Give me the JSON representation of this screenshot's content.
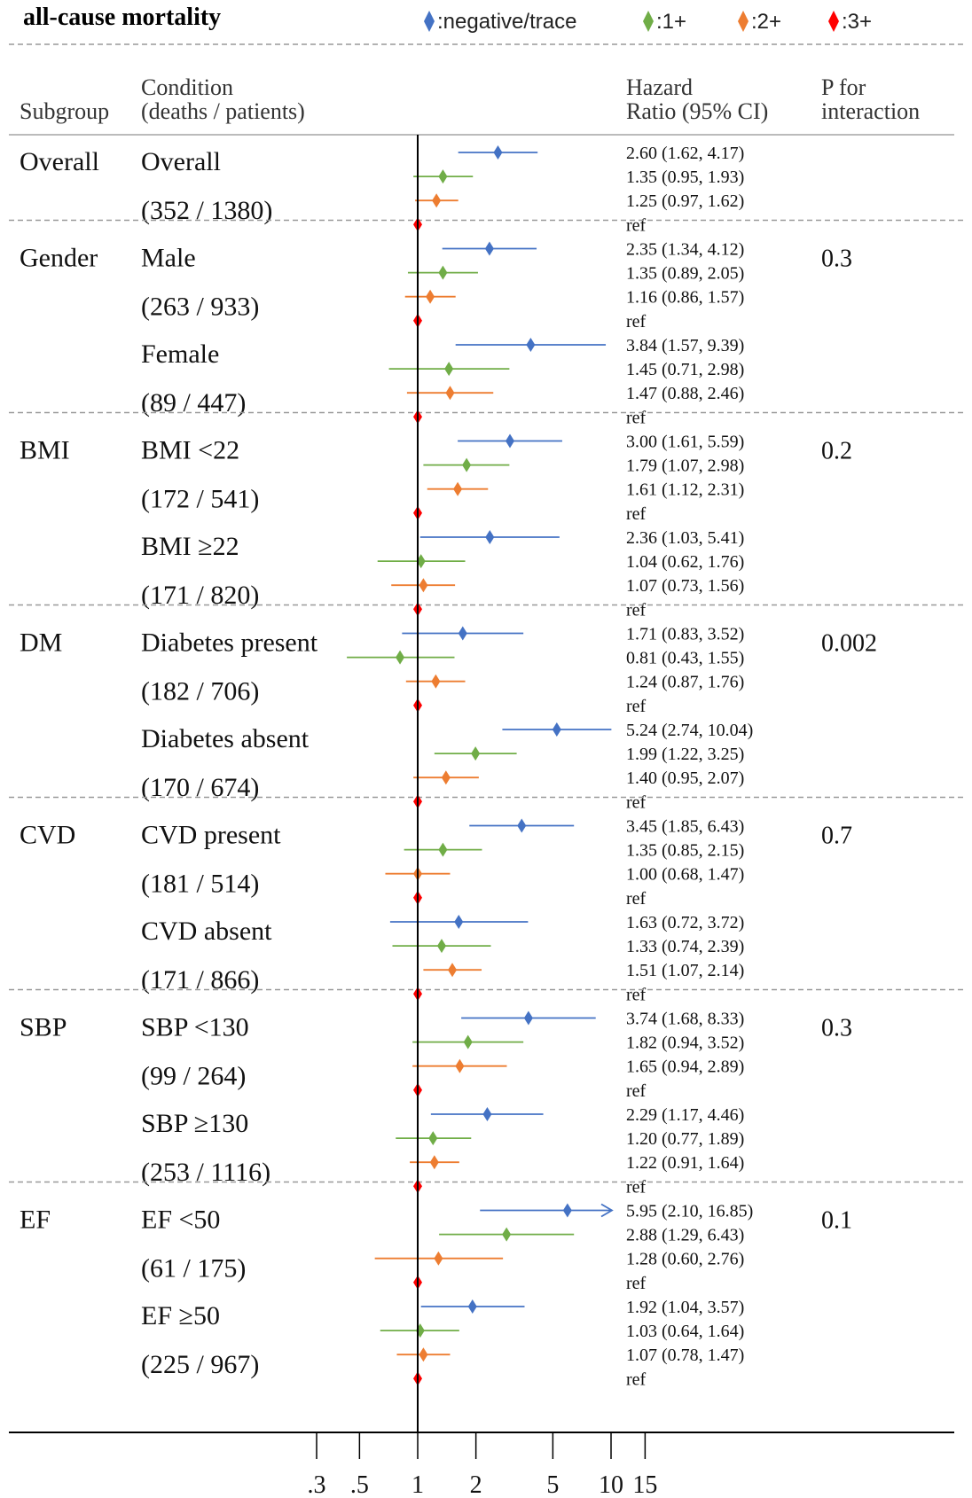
{
  "chart_data": {
    "type": "forest",
    "title": "all-cause mortality",
    "legend": {
      "placement": "top-right",
      "items": [
        {
          "label": ":negative/trace",
          "color": "#4472C4"
        },
        {
          "label": ":1+",
          "color": "#70AD47"
        },
        {
          "label": ":2+",
          "color": "#ED7D31"
        },
        {
          "label": ":3+",
          "color": "#FF0000"
        }
      ]
    },
    "columns": {
      "subgroup": "Subgroup",
      "condition_l1": "Condition",
      "condition_l2": "(deaths / patients)",
      "hr_l1": "Hazard",
      "hr_l2": "Ratio (95% CI)",
      "p_l1": "P for",
      "p_l2": "interaction"
    },
    "x_axis": {
      "scale": "log",
      "ticks": [
        0.3,
        0.5,
        1,
        2,
        5,
        10,
        15
      ],
      "tick_labels": [
        ".3",
        ".5",
        "1",
        "2",
        "5",
        "10",
        "15"
      ],
      "reference": 1
    },
    "groups": [
      {
        "subgroup": "Overall",
        "p": "",
        "conditions": [
          {
            "label": "Overall",
            "counts": "(352 / 1380)",
            "estimates": [
              {
                "hr": 2.6,
                "lo": 1.62,
                "hi": 4.17,
                "text": "2.60 (1.62, 4.17)"
              },
              {
                "hr": 1.35,
                "lo": 0.95,
                "hi": 1.93,
                "text": "1.35 (0.95, 1.93)"
              },
              {
                "hr": 1.25,
                "lo": 0.97,
                "hi": 1.62,
                "text": "1.25 (0.97, 1.62)"
              },
              {
                "hr": 1,
                "lo": null,
                "hi": null,
                "text": "ref"
              }
            ]
          }
        ]
      },
      {
        "subgroup": "Gender",
        "p": "0.3",
        "conditions": [
          {
            "label": "Male",
            "counts": "(263 / 933)",
            "estimates": [
              {
                "hr": 2.35,
                "lo": 1.34,
                "hi": 4.12,
                "text": "2.35 (1.34, 4.12)"
              },
              {
                "hr": 1.35,
                "lo": 0.89,
                "hi": 2.05,
                "text": "1.35 (0.89, 2.05)"
              },
              {
                "hr": 1.16,
                "lo": 0.86,
                "hi": 1.57,
                "text": "1.16 (0.86, 1.57)"
              },
              {
                "hr": 1,
                "lo": null,
                "hi": null,
                "text": "ref"
              }
            ]
          },
          {
            "label": "Female",
            "counts": "(89 / 447)",
            "estimates": [
              {
                "hr": 3.84,
                "lo": 1.57,
                "hi": 9.39,
                "text": "3.84 (1.57, 9.39)"
              },
              {
                "hr": 1.45,
                "lo": 0.71,
                "hi": 2.98,
                "text": "1.45 (0.71, 2.98)"
              },
              {
                "hr": 1.47,
                "lo": 0.88,
                "hi": 2.46,
                "text": "1.47 (0.88, 2.46)"
              },
              {
                "hr": 1,
                "lo": null,
                "hi": null,
                "text": "ref"
              }
            ]
          }
        ]
      },
      {
        "subgroup": "BMI",
        "p": "0.2",
        "conditions": [
          {
            "label": "BMI <22",
            "counts": "(172 / 541)",
            "estimates": [
              {
                "hr": 3.0,
                "lo": 1.61,
                "hi": 5.59,
                "text": "3.00 (1.61, 5.59)"
              },
              {
                "hr": 1.79,
                "lo": 1.07,
                "hi": 2.98,
                "text": "1.79 (1.07, 2.98)"
              },
              {
                "hr": 1.61,
                "lo": 1.12,
                "hi": 2.31,
                "text": "1.61 (1.12, 2.31)"
              },
              {
                "hr": 1,
                "lo": null,
                "hi": null,
                "text": "ref"
              }
            ]
          },
          {
            "label": "BMI ≥22",
            "counts": "(171 / 820)",
            "estimates": [
              {
                "hr": 2.36,
                "lo": 1.03,
                "hi": 5.41,
                "text": "2.36 (1.03, 5.41)"
              },
              {
                "hr": 1.04,
                "lo": 0.62,
                "hi": 1.76,
                "text": "1.04 (0.62, 1.76)"
              },
              {
                "hr": 1.07,
                "lo": 0.73,
                "hi": 1.56,
                "text": "1.07 (0.73, 1.56)"
              },
              {
                "hr": 1,
                "lo": null,
                "hi": null,
                "text": "ref"
              }
            ]
          }
        ]
      },
      {
        "subgroup": "DM",
        "p": "0.002",
        "conditions": [
          {
            "label": "Diabetes present",
            "counts": "(182 / 706)",
            "estimates": [
              {
                "hr": 1.71,
                "lo": 0.83,
                "hi": 3.52,
                "text": "1.71 (0.83, 3.52)"
              },
              {
                "hr": 0.81,
                "lo": 0.43,
                "hi": 1.55,
                "text": "0.81 (0.43, 1.55)"
              },
              {
                "hr": 1.24,
                "lo": 0.87,
                "hi": 1.76,
                "text": "1.24 (0.87, 1.76)"
              },
              {
                "hr": 1,
                "lo": null,
                "hi": null,
                "text": "ref"
              }
            ]
          },
          {
            "label": "Diabetes absent",
            "counts": "(170 / 674)",
            "estimates": [
              {
                "hr": 5.24,
                "lo": 2.74,
                "hi": 10.04,
                "text": "5.24 (2.74, 10.04)"
              },
              {
                "hr": 1.99,
                "lo": 1.22,
                "hi": 3.25,
                "text": "1.99 (1.22, 3.25)"
              },
              {
                "hr": 1.4,
                "lo": 0.95,
                "hi": 2.07,
                "text": "1.40 (0.95, 2.07)"
              },
              {
                "hr": 1,
                "lo": null,
                "hi": null,
                "text": "ref"
              }
            ]
          }
        ]
      },
      {
        "subgroup": "CVD",
        "p": "0.7",
        "conditions": [
          {
            "label": "CVD present",
            "counts": "(181 / 514)",
            "estimates": [
              {
                "hr": 3.45,
                "lo": 1.85,
                "hi": 6.43,
                "text": "3.45 (1.85, 6.43)"
              },
              {
                "hr": 1.35,
                "lo": 0.85,
                "hi": 2.15,
                "text": "1.35 (0.85, 2.15)"
              },
              {
                "hr": 1.0,
                "lo": 0.68,
                "hi": 1.47,
                "text": "1.00 (0.68, 1.47)"
              },
              {
                "hr": 1,
                "lo": null,
                "hi": null,
                "text": "ref"
              }
            ]
          },
          {
            "label": "CVD absent",
            "counts": "(171 / 866)",
            "estimates": [
              {
                "hr": 1.63,
                "lo": 0.72,
                "hi": 3.72,
                "text": "1.63 (0.72, 3.72)"
              },
              {
                "hr": 1.33,
                "lo": 0.74,
                "hi": 2.39,
                "text": "1.33 (0.74, 2.39)"
              },
              {
                "hr": 1.51,
                "lo": 1.07,
                "hi": 2.14,
                "text": "1.51 (1.07, 2.14)"
              },
              {
                "hr": 1,
                "lo": null,
                "hi": null,
                "text": "ref"
              }
            ]
          }
        ]
      },
      {
        "subgroup": "SBP",
        "p": "0.3",
        "conditions": [
          {
            "label": "SBP <130",
            "counts": "(99 / 264)",
            "estimates": [
              {
                "hr": 3.74,
                "lo": 1.68,
                "hi": 8.33,
                "text": "3.74 (1.68, 8.33)"
              },
              {
                "hr": 1.82,
                "lo": 0.94,
                "hi": 3.52,
                "text": "1.82 (0.94, 3.52)"
              },
              {
                "hr": 1.65,
                "lo": 0.94,
                "hi": 2.89,
                "text": "1.65 (0.94, 2.89)"
              },
              {
                "hr": 1,
                "lo": null,
                "hi": null,
                "text": "ref"
              }
            ]
          },
          {
            "label": "SBP ≥130",
            "counts": "(253 / 1116)",
            "estimates": [
              {
                "hr": 2.29,
                "lo": 1.17,
                "hi": 4.46,
                "text": "2.29 (1.17, 4.46)"
              },
              {
                "hr": 1.2,
                "lo": 0.77,
                "hi": 1.89,
                "text": "1.20 (0.77, 1.89)"
              },
              {
                "hr": 1.22,
                "lo": 0.91,
                "hi": 1.64,
                "text": "1.22 (0.91, 1.64)"
              },
              {
                "hr": 1,
                "lo": null,
                "hi": null,
                "text": "ref"
              }
            ]
          }
        ]
      },
      {
        "subgroup": "EF",
        "p": "0.1",
        "conditions": [
          {
            "label": "EF <50",
            "counts": "(61 / 175)",
            "estimates": [
              {
                "hr": 5.95,
                "lo": 2.1,
                "hi": 16.85,
                "text": "5.95 (2.10, 16.85)"
              },
              {
                "hr": 2.88,
                "lo": 1.29,
                "hi": 6.43,
                "text": "2.88 (1.29, 6.43)"
              },
              {
                "hr": 1.28,
                "lo": 0.6,
                "hi": 2.76,
                "text": "1.28 (0.60, 2.76)"
              },
              {
                "hr": 1,
                "lo": null,
                "hi": null,
                "text": "ref"
              }
            ]
          },
          {
            "label": "EF ≥50",
            "counts": "(225 / 967)",
            "estimates": [
              {
                "hr": 1.92,
                "lo": 1.04,
                "hi": 3.57,
                "text": "1.92 (1.04, 3.57)"
              },
              {
                "hr": 1.03,
                "lo": 0.64,
                "hi": 1.64,
                "text": "1.03 (0.64, 1.64)"
              },
              {
                "hr": 1.07,
                "lo": 0.78,
                "hi": 1.47,
                "text": "1.07 (0.78, 1.47)"
              },
              {
                "hr": 1,
                "lo": null,
                "hi": null,
                "text": "ref"
              }
            ]
          }
        ]
      }
    ]
  }
}
